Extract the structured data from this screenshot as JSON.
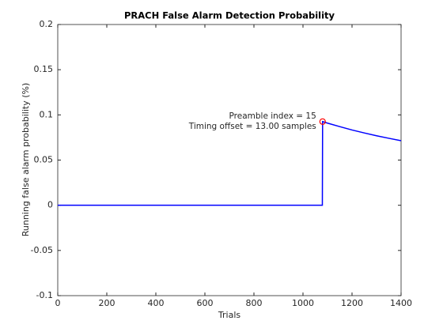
{
  "chart_data": {
    "type": "line",
    "title": "PRACH False Alarm Detection Probability",
    "xlabel": "Trials",
    "ylabel": "Running false alarm probability (%)",
    "x": [
      0,
      1079,
      1080,
      1100,
      1150,
      1200,
      1250,
      1300,
      1350,
      1400
    ],
    "series": [
      {
        "color": "#0000ff",
        "values": [
          0,
          0,
          0.0926,
          0.0909,
          0.087,
          0.0833,
          0.08,
          0.0769,
          0.0741,
          0.0714
        ]
      }
    ],
    "marker": {
      "x": 1080,
      "y": 0.0926,
      "color": "#ff0000"
    },
    "annotations": [
      "Preamble index = 15",
      "Timing offset = 13.00 samples"
    ],
    "xlim": [
      0,
      1400
    ],
    "xticks": [
      0,
      200,
      400,
      600,
      800,
      1000,
      1200,
      1400
    ],
    "ylim": [
      -0.1,
      0.2
    ],
    "yticks": [
      -0.1,
      -0.05,
      0,
      0.05,
      0.1,
      0.15,
      0.2
    ],
    "grid": false
  }
}
